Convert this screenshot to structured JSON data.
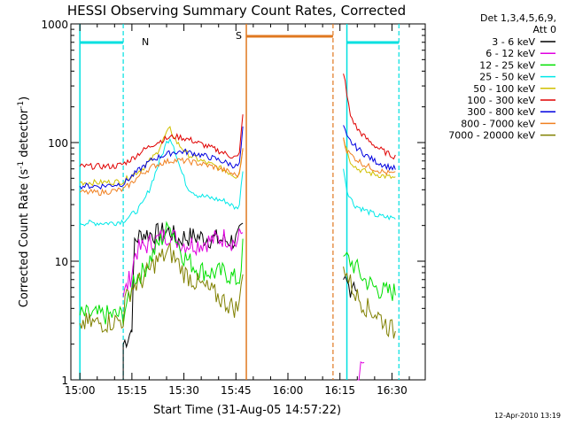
{
  "chart_data": {
    "type": "line",
    "title": "HESSI Observing Summary Count Rates, Corrected",
    "xlabel": "Start Time (31-Aug-05 14:57:22)",
    "ylabel": "Corrected Count Rate (s⁻¹ detector⁻¹)",
    "ylabel_main": "Corrected Count Rate (s",
    "ylabel_sup1": "-1",
    "ylabel_mid": " detector",
    "ylabel_sup2": "-1",
    "ylabel_end": ")",
    "y_scale": "log",
    "ylim": [
      1,
      1000
    ],
    "xlim": [
      "14:57:22",
      "16:37:00"
    ],
    "x_ticks": [
      "15:00",
      "15:15",
      "15:30",
      "15:45",
      "16:00",
      "16:15",
      "16:30"
    ],
    "x_tick_minutes": [
      0,
      15,
      30,
      45,
      60,
      75,
      90
    ],
    "x_origin_minutes_before_first_tick": 2.6,
    "y_ticks": [
      "1",
      "10",
      "100",
      "1000"
    ],
    "legend_header": [
      "Det 1,3,4,5,6,9,",
      "Att 0"
    ],
    "legend_position": "right",
    "grid": false,
    "series": [
      {
        "name": "3 - 6 keV",
        "color": "#000000",
        "points": [
          [
            12.5,
            1
          ],
          [
            12.5,
            2
          ],
          [
            14.8,
            2.6
          ],
          [
            15.0,
            3
          ],
          [
            15.8,
            15
          ],
          [
            18,
            17
          ],
          [
            22,
            17
          ],
          [
            26,
            18
          ],
          [
            28,
            15
          ],
          [
            30,
            16
          ],
          [
            34,
            16
          ],
          [
            42,
            15
          ],
          [
            45,
            15
          ],
          [
            47,
            18
          ],
          [
            76,
            7
          ],
          [
            78,
            6
          ],
          [
            79,
            7
          ],
          [
            80,
            5.8
          ]
        ]
      },
      {
        "name": "6 - 12 keV",
        "color": "#e000e0",
        "points": [
          [
            12.5,
            5
          ],
          [
            15,
            8
          ],
          [
            16,
            12
          ],
          [
            18,
            13
          ],
          [
            22,
            15
          ],
          [
            26,
            17
          ],
          [
            28,
            15
          ],
          [
            30,
            14
          ],
          [
            34,
            14
          ],
          [
            42,
            16
          ],
          [
            45,
            14
          ],
          [
            47,
            18
          ],
          [
            80,
            1
          ],
          [
            81,
            1.2
          ],
          [
            82,
            1.4
          ]
        ]
      },
      {
        "name": "12 - 25 keV",
        "color": "#00e000",
        "points": [
          [
            0,
            3.5
          ],
          [
            6,
            3.5
          ],
          [
            12.5,
            3.5
          ],
          [
            13.5,
            4.5
          ],
          [
            14.5,
            4.5
          ],
          [
            15,
            7
          ],
          [
            18,
            8
          ],
          [
            22,
            13
          ],
          [
            25,
            18
          ],
          [
            26,
            20
          ],
          [
            28,
            15
          ],
          [
            30,
            11
          ],
          [
            34,
            8.5
          ],
          [
            38,
            8
          ],
          [
            42,
            8
          ],
          [
            45,
            7
          ],
          [
            46,
            7
          ],
          [
            47,
            13
          ],
          [
            76,
            11
          ],
          [
            78,
            10
          ],
          [
            80,
            8.5
          ],
          [
            82,
            7
          ],
          [
            85,
            6
          ],
          [
            88,
            5.5
          ],
          [
            91,
            5.5
          ]
        ]
      },
      {
        "name": "25 - 50 keV",
        "color": "#00e8e8",
        "points": [
          [
            0,
            21
          ],
          [
            5,
            21
          ],
          [
            10,
            21
          ],
          [
            12.5,
            22
          ],
          [
            14.5,
            24
          ],
          [
            16,
            26
          ],
          [
            18,
            30
          ],
          [
            20,
            40
          ],
          [
            23,
            70
          ],
          [
            25,
            100
          ],
          [
            26,
            110
          ],
          [
            27,
            95
          ],
          [
            29,
            60
          ],
          [
            31,
            42
          ],
          [
            34,
            36
          ],
          [
            38,
            34
          ],
          [
            42,
            32
          ],
          [
            45,
            28
          ],
          [
            46,
            30
          ],
          [
            47,
            60
          ],
          [
            76,
            60
          ],
          [
            77,
            40
          ],
          [
            79,
            30
          ],
          [
            82,
            27
          ],
          [
            86,
            24
          ],
          [
            91,
            23
          ]
        ]
      },
      {
        "name": "50 - 100 keV",
        "color": "#d0c000",
        "points": [
          [
            0,
            46
          ],
          [
            6,
            46
          ],
          [
            12.5,
            47
          ],
          [
            14.5,
            52
          ],
          [
            18,
            60
          ],
          [
            22,
            80
          ],
          [
            25,
            120
          ],
          [
            26,
            130
          ],
          [
            28,
            100
          ],
          [
            31,
            80
          ],
          [
            34,
            72
          ],
          [
            38,
            65
          ],
          [
            42,
            58
          ],
          [
            45,
            52
          ],
          [
            46,
            56
          ],
          [
            47,
            90
          ],
          [
            76,
            110
          ],
          [
            78,
            70
          ],
          [
            80,
            60
          ],
          [
            84,
            55
          ],
          [
            88,
            52
          ],
          [
            91,
            50
          ]
        ]
      },
      {
        "name": "100 - 300 keV",
        "color": "#e00000",
        "points": [
          [
            0,
            63
          ],
          [
            5,
            63
          ],
          [
            10,
            63
          ],
          [
            12.5,
            66
          ],
          [
            15,
            73
          ],
          [
            18,
            85
          ],
          [
            22,
            100
          ],
          [
            25,
            108
          ],
          [
            27,
            112
          ],
          [
            29,
            111
          ],
          [
            32,
            105
          ],
          [
            35,
            97
          ],
          [
            38,
            90
          ],
          [
            41,
            83
          ],
          [
            44,
            76
          ],
          [
            45.5,
            75
          ],
          [
            46,
            80
          ],
          [
            47,
            180
          ],
          [
            76,
            380
          ],
          [
            76.5,
            320
          ],
          [
            77,
            250
          ],
          [
            78,
            170
          ],
          [
            80,
            130
          ],
          [
            83,
            105
          ],
          [
            86,
            90
          ],
          [
            89,
            80
          ],
          [
            91,
            76
          ]
        ]
      },
      {
        "name": "300 - 800 keV",
        "color": "#0000e0",
        "points": [
          [
            0,
            43
          ],
          [
            6,
            43
          ],
          [
            12.5,
            45
          ],
          [
            15,
            52
          ],
          [
            18,
            62
          ],
          [
            21,
            72
          ],
          [
            24,
            78
          ],
          [
            27,
            83
          ],
          [
            30,
            84
          ],
          [
            33,
            81
          ],
          [
            36,
            77
          ],
          [
            39,
            73
          ],
          [
            42,
            68
          ],
          [
            45,
            63
          ],
          [
            46,
            65
          ],
          [
            47,
            130
          ],
          [
            76,
            140
          ],
          [
            77,
            110
          ],
          [
            79,
            95
          ],
          [
            82,
            80
          ],
          [
            85,
            70
          ],
          [
            88,
            64
          ],
          [
            91,
            60
          ]
        ]
      },
      {
        "name": "800 - 7000 keV",
        "color": "#f08020",
        "points": [
          [
            0,
            38
          ],
          [
            6,
            38
          ],
          [
            12.5,
            40
          ],
          [
            15,
            46
          ],
          [
            18,
            55
          ],
          [
            21,
            63
          ],
          [
            24,
            68
          ],
          [
            27,
            71
          ],
          [
            30,
            70
          ],
          [
            33,
            68
          ],
          [
            36,
            65
          ],
          [
            39,
            62
          ],
          [
            42,
            58
          ],
          [
            45,
            53
          ],
          [
            46,
            54
          ],
          [
            47,
            90
          ],
          [
            76,
            110
          ],
          [
            77,
            85
          ],
          [
            79,
            75
          ],
          [
            82,
            65
          ],
          [
            85,
            60
          ],
          [
            88,
            56
          ],
          [
            91,
            54
          ]
        ]
      },
      {
        "name": "7000 - 20000 keV",
        "color": "#808000",
        "points": [
          [
            0,
            3
          ],
          [
            6,
            3
          ],
          [
            12.5,
            3.2
          ],
          [
            13,
            4.5
          ],
          [
            15,
            6
          ],
          [
            18,
            7
          ],
          [
            22,
            10
          ],
          [
            26,
            12
          ],
          [
            28,
            10
          ],
          [
            30,
            8
          ],
          [
            34,
            6.5
          ],
          [
            38,
            5.5
          ],
          [
            42,
            4.5
          ],
          [
            45,
            4
          ],
          [
            46,
            4.2
          ],
          [
            47,
            9
          ],
          [
            76,
            9
          ],
          [
            78,
            6.5
          ],
          [
            80,
            5
          ],
          [
            83,
            4
          ],
          [
            86,
            3.5
          ],
          [
            89,
            2.8
          ],
          [
            91,
            2.5
          ]
        ]
      }
    ],
    "annotations": {
      "night_label": "N",
      "saa_label": "S",
      "timestamp": "12-Apr-2010 13:19"
    },
    "overlay_lines": {
      "night_bars": [
        [
          0,
          12.5
        ],
        [
          77,
          92
        ]
      ],
      "night_solid": [
        0,
        77
      ],
      "night_dashed": [
        12.5,
        92
      ],
      "saa_bar": [
        48,
        73
      ],
      "saa_solid": 48,
      "saa_dashed": 73
    }
  }
}
